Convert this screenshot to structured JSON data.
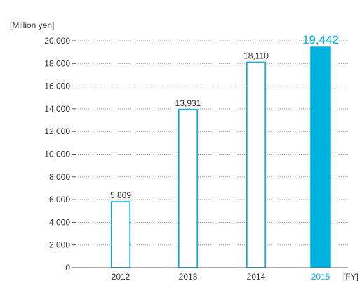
{
  "chart_data": {
    "type": "bar",
    "title": "",
    "ylabel": "[Million yen]",
    "xlabel": "[FY]",
    "categories": [
      "2012",
      "2013",
      "2014",
      "2015"
    ],
    "values": [
      5809,
      13931,
      18110,
      19442
    ],
    "value_labels": [
      "5,809",
      "13,931",
      "18,110",
      "19,442"
    ],
    "highlight_index": 3,
    "ylim": [
      0,
      20000
    ],
    "yticks": [
      0,
      2000,
      4000,
      6000,
      8000,
      10000,
      12000,
      14000,
      16000,
      18000,
      20000
    ],
    "ytick_labels": [
      "0",
      "2,000",
      "4,000",
      "6,000",
      "8,000",
      "10,000",
      "12,000",
      "14,000",
      "16,000",
      "18,000",
      "20,000"
    ],
    "grid": true,
    "colors": {
      "accent": "#00b1de",
      "bar_outline": "#1aa7d6",
      "bar_fill": "#ffffff",
      "axis": "#555555",
      "grid": "#9a9a9a",
      "text": "#333333"
    }
  }
}
